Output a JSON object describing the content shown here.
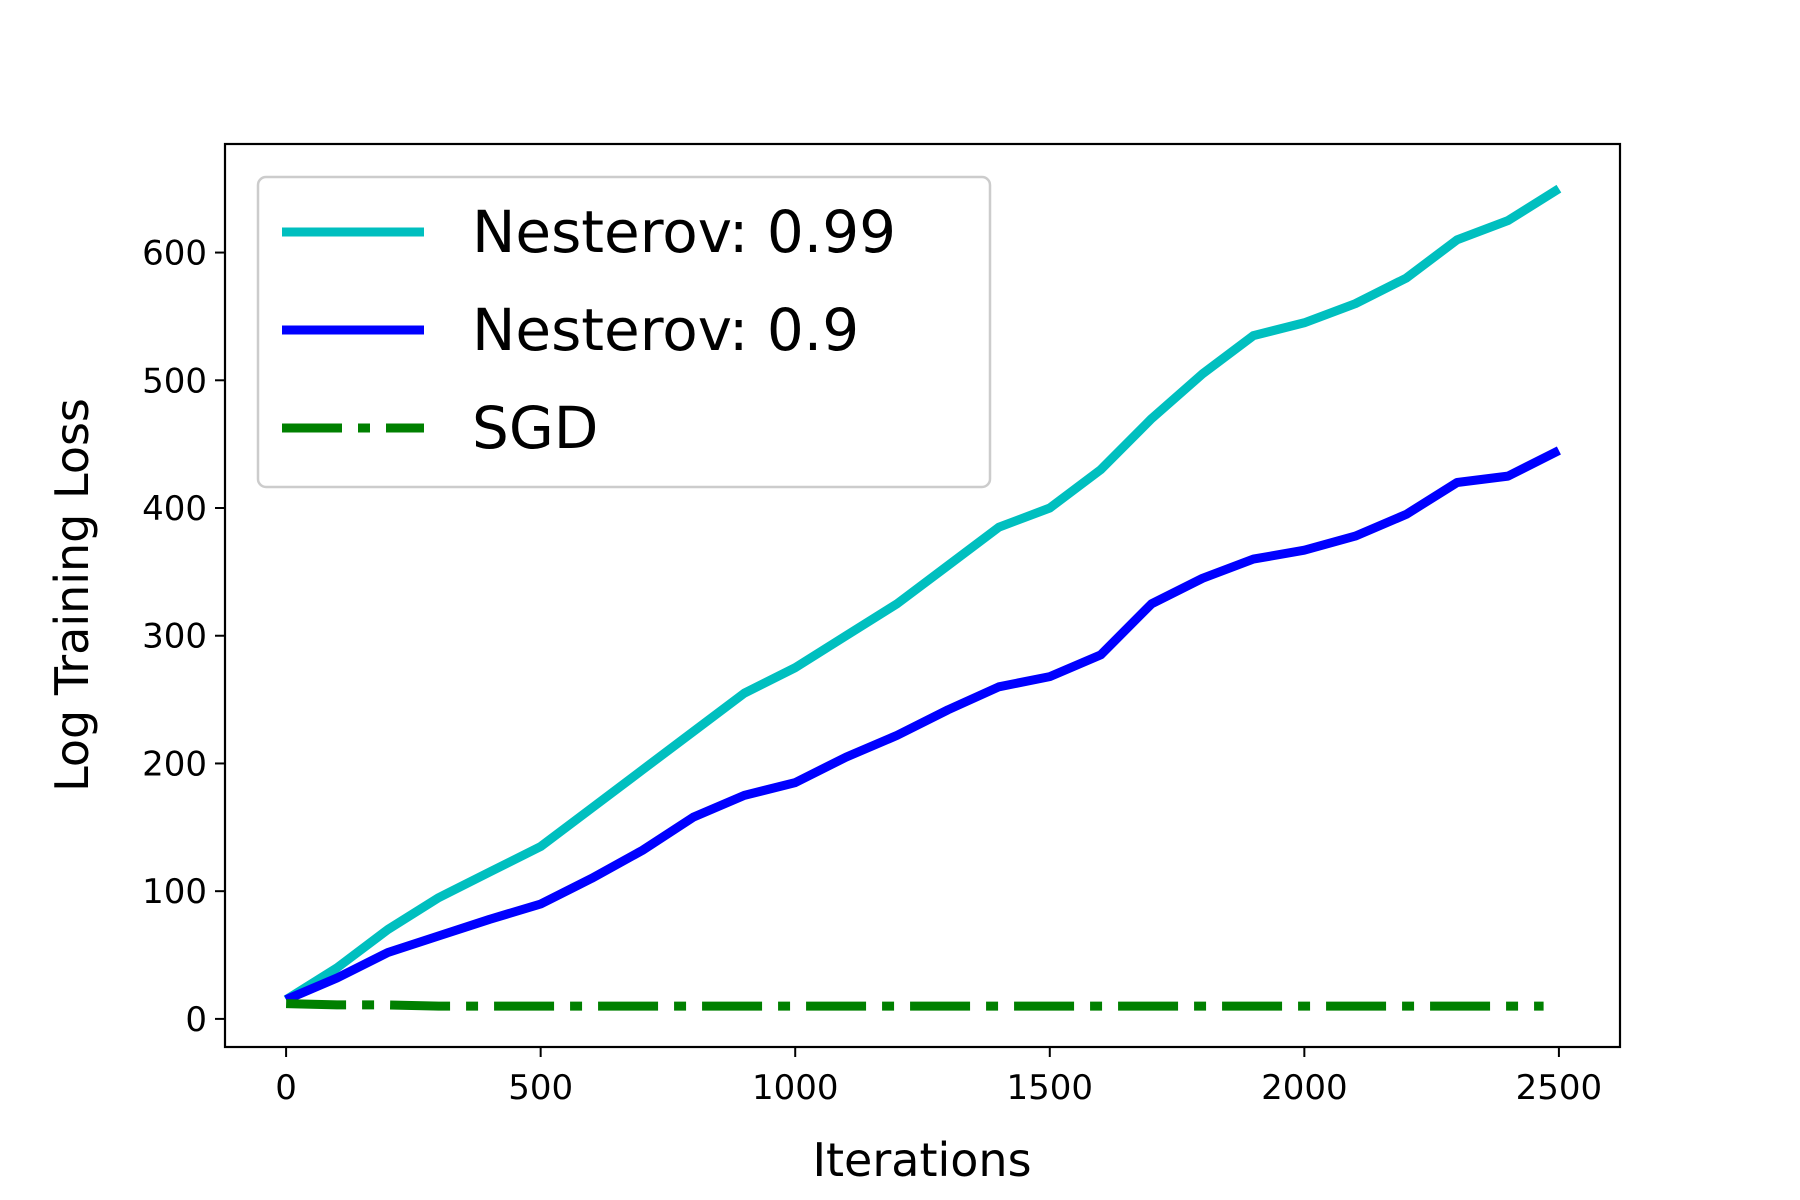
{
  "chart_data": {
    "type": "line",
    "xlabel": "Iterations",
    "ylabel": "Log Training Loss",
    "xlim": [
      -120,
      2620
    ],
    "ylim": [
      -22,
      685
    ],
    "xticks": [
      0,
      500,
      1000,
      1500,
      2000,
      2500
    ],
    "yticks": [
      0,
      100,
      200,
      300,
      400,
      500,
      600
    ],
    "grid": false,
    "legend_position": "upper-left",
    "x": [
      0,
      100,
      200,
      300,
      400,
      500,
      600,
      700,
      800,
      900,
      1000,
      1100,
      1200,
      1300,
      1400,
      1500,
      1600,
      1700,
      1800,
      1900,
      2000,
      2100,
      2200,
      2300,
      2400,
      2500
    ],
    "series": [
      {
        "name": "Nesterov: 0.99",
        "color": "#00bfbf",
        "style": "solid",
        "values": [
          15,
          40,
          70,
          95,
          115,
          135,
          165,
          195,
          225,
          255,
          275,
          300,
          325,
          355,
          385,
          400,
          430,
          470,
          505,
          535,
          545,
          560,
          580,
          610,
          625,
          650
        ]
      },
      {
        "name": "Nesterov: 0.9",
        "color": "#0000ff",
        "style": "solid",
        "values": [
          15,
          32,
          52,
          65,
          78,
          90,
          110,
          132,
          158,
          175,
          185,
          205,
          222,
          242,
          260,
          268,
          285,
          325,
          345,
          360,
          367,
          378,
          395,
          420,
          425,
          445
        ]
      },
      {
        "name": "SGD",
        "color": "#008000",
        "style": "dashdot",
        "values": [
          12,
          11,
          11,
          10,
          10,
          10,
          10,
          10,
          10,
          10,
          10,
          10,
          10,
          10,
          10,
          10,
          10,
          10,
          10,
          10,
          10,
          10,
          10,
          10,
          10,
          10
        ],
        "x_end": 2470
      }
    ]
  }
}
